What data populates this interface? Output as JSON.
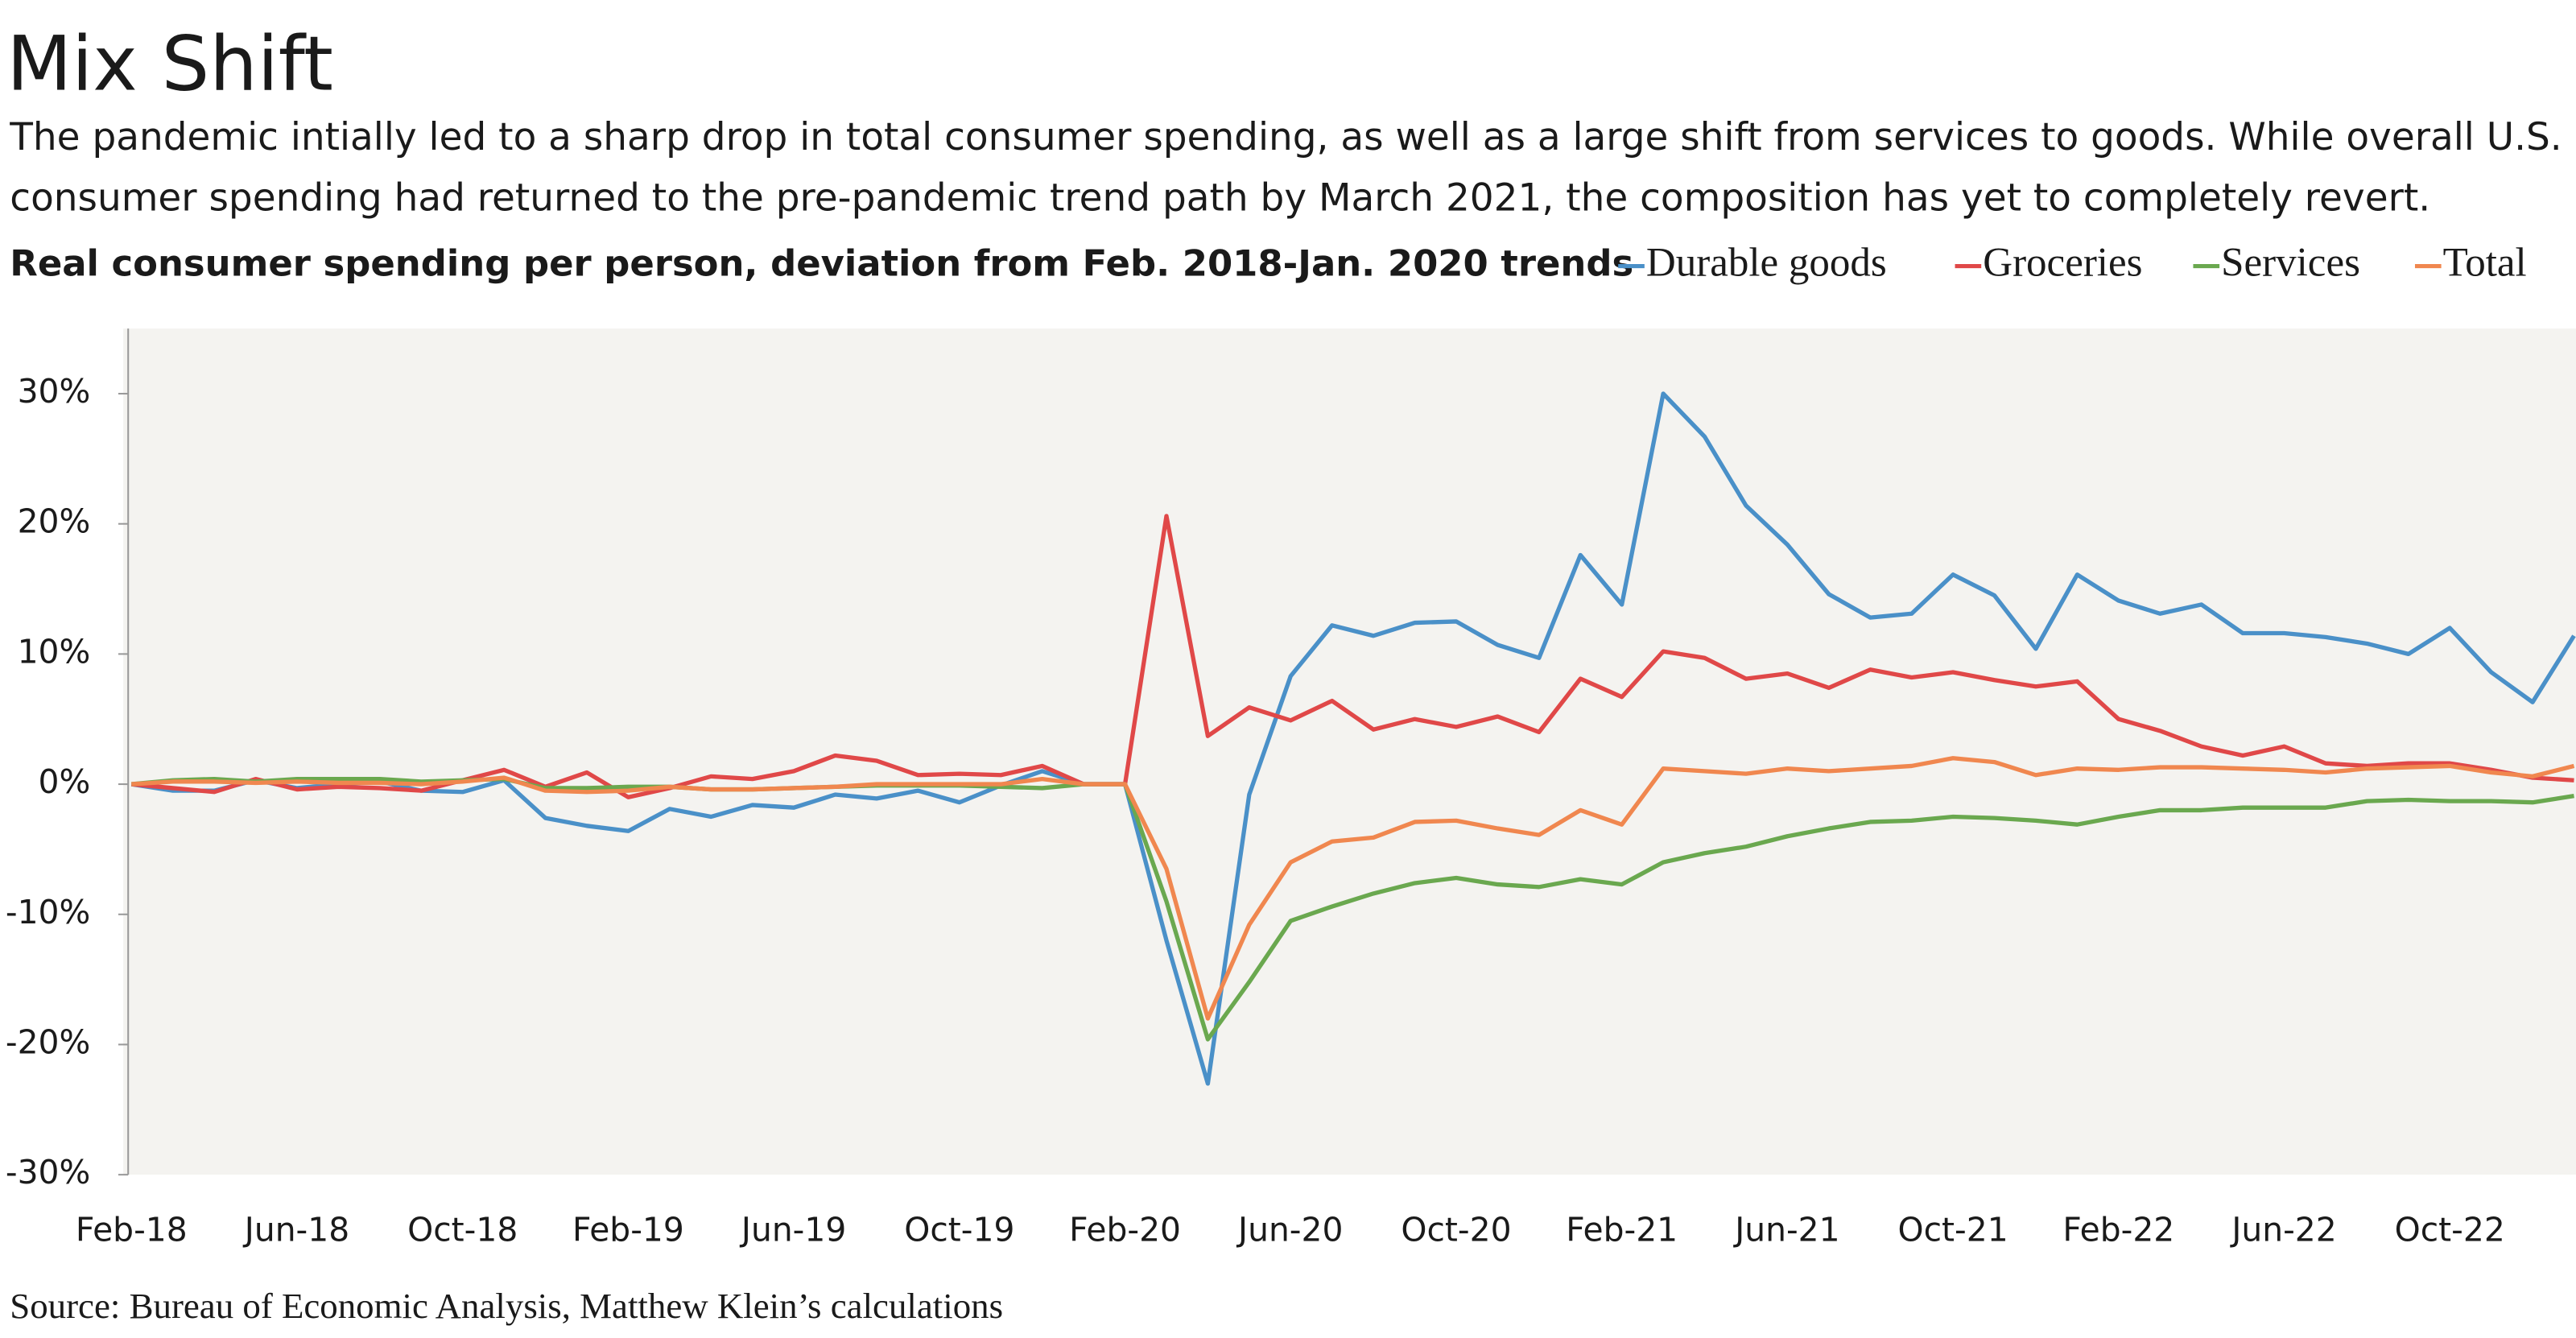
{
  "chart_data": {
    "type": "line",
    "title": "Mix Shift",
    "subtitle": [
      "The pandemic intially led to a sharp drop in total consumer spending, as well as a large shift from services to goods. While overall U.S.",
      "consumer spending had returned to the pre-pandemic trend path by March 2021, the composition has yet to completely revert."
    ],
    "chart_title": "Real consumer spending per person, deviation from Feb. 2018-Jan. 2020 trends",
    "source": "Source: Bureau of Economic Analysis, Matthew Klein’s calculations",
    "categories": [
      "Feb-18",
      null,
      null,
      null,
      "Jun-18",
      null,
      null,
      null,
      "Oct-18",
      null,
      null,
      null,
      "Feb-19",
      null,
      null,
      null,
      "Jun-19",
      null,
      null,
      null,
      "Oct-19",
      null,
      null,
      null,
      "Feb-20",
      null,
      null,
      null,
      "Jun-20",
      null,
      null,
      null,
      "Oct-20",
      null,
      null,
      null,
      "Feb-21",
      null,
      null,
      null,
      "Jun-21",
      null,
      null,
      null,
      "Oct-21",
      null,
      null,
      null,
      "Feb-22",
      null,
      null,
      null,
      "Jun-22",
      null,
      null,
      null,
      "Oct-22",
      null,
      null,
      null
    ],
    "series": [
      {
        "name": "Durable goods",
        "color": "#4a90c8",
        "values": [
          0,
          -0.5,
          -0.5,
          0.3,
          -0.3,
          0,
          0.2,
          -0.5,
          -0.6,
          0.3,
          -2.6,
          -3.2,
          -3.6,
          -1.9,
          -2.5,
          -1.6,
          -1.8,
          -0.8,
          -1.1,
          -0.5,
          -1.4,
          -0.1,
          1.0,
          0,
          0,
          -12,
          -23,
          -0.8,
          8.3,
          12.2,
          11.4,
          12.4,
          12.5,
          10.7,
          9.7,
          17.6,
          13.8,
          30,
          26.7,
          21.4,
          18.4,
          14.6,
          12.8,
          13.1,
          16.1,
          14.5,
          10.4,
          16.1,
          14.1,
          13.1,
          13.8,
          11.6,
          11.6,
          11.3,
          10.8,
          10.0,
          12.0,
          8.6,
          6.3,
          11.4
        ]
      },
      {
        "name": "Groceries",
        "color": "#e04848",
        "values": [
          0,
          -0.3,
          -0.6,
          0.4,
          -0.4,
          -0.2,
          -0.3,
          -0.5,
          0.3,
          1.1,
          -0.2,
          0.9,
          -1.0,
          -0.3,
          0.6,
          0.4,
          1.0,
          2.2,
          1.8,
          0.7,
          0.8,
          0.7,
          1.4,
          0,
          0,
          20.6,
          3.7,
          5.9,
          4.9,
          6.4,
          4.2,
          5.0,
          4.4,
          5.2,
          4.0,
          8.1,
          6.7,
          10.2,
          9.7,
          8.1,
          8.5,
          7.4,
          8.8,
          8.2,
          8.6,
          8.0,
          7.5,
          7.9,
          5.0,
          4.1,
          2.9,
          2.2,
          2.9,
          1.6,
          1.4,
          1.6,
          1.6,
          1.1,
          0.5,
          0.3
        ]
      },
      {
        "name": "Services",
        "color": "#6aa84f",
        "values": [
          0,
          0.3,
          0.4,
          0.2,
          0.4,
          0.4,
          0.4,
          0.2,
          0.3,
          0.4,
          -0.3,
          -0.3,
          -0.2,
          -0.2,
          -0.4,
          -0.4,
          -0.3,
          -0.2,
          -0.1,
          -0.1,
          -0.1,
          -0.2,
          -0.3,
          0,
          0,
          -9,
          -19.6,
          -15.2,
          -10.5,
          -9.4,
          -8.4,
          -7.6,
          -7.2,
          -7.7,
          -7.9,
          -7.3,
          -7.7,
          -6.0,
          -5.3,
          -4.8,
          -4.0,
          -3.4,
          -2.9,
          -2.8,
          -2.5,
          -2.6,
          -2.8,
          -3.1,
          -2.5,
          -2.0,
          -2.0,
          -1.8,
          -1.8,
          -1.8,
          -1.3,
          -1.2,
          -1.3,
          -1.3,
          -1.4,
          -0.9
        ]
      },
      {
        "name": "Total",
        "color": "#f0874f",
        "values": [
          0,
          0.2,
          0.2,
          0.1,
          0.2,
          0.1,
          0.1,
          0,
          0.2,
          0.5,
          -0.5,
          -0.6,
          -0.5,
          -0.2,
          -0.4,
          -0.4,
          -0.3,
          -0.2,
          0,
          0,
          0,
          0,
          0.4,
          0,
          0,
          -6.5,
          -18,
          -10.8,
          -6.0,
          -4.4,
          -4.1,
          -2.9,
          -2.8,
          -3.4,
          -3.9,
          -2.0,
          -3.1,
          1.2,
          1.0,
          0.8,
          1.2,
          1.0,
          1.2,
          1.4,
          2.0,
          1.7,
          0.7,
          1.2,
          1.1,
          1.3,
          1.3,
          1.2,
          1.1,
          0.9,
          1.2,
          1.3,
          1.4,
          0.9,
          0.6,
          1.4
        ]
      }
    ],
    "ylim": [
      -30,
      35
    ],
    "yticks": [
      {
        "value": -30,
        "label": "-30%"
      },
      {
        "value": -20,
        "label": "-20%"
      },
      {
        "value": -10,
        "label": "-10%"
      },
      {
        "value": 0,
        "label": "0%"
      },
      {
        "value": 10,
        "label": "10%"
      },
      {
        "value": 20,
        "label": "20%"
      },
      {
        "value": 30,
        "label": "30%"
      }
    ],
    "plot_background": "#f4f3f0",
    "legend": "top-right"
  }
}
